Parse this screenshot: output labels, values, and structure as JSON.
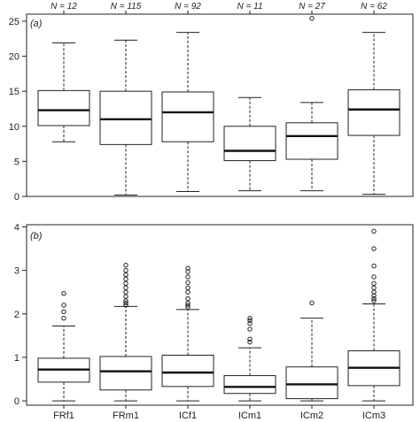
{
  "chart_data": [
    {
      "type": "box",
      "panel_label": "(a)",
      "categories": [
        "FRf1",
        "FRm1",
        "ICf1",
        "ICm1",
        "ICm2",
        "ICm3"
      ],
      "n_labels": [
        "N = 12",
        "N = 115",
        "N = 92",
        "N = 11",
        "N = 27",
        "N = 62"
      ],
      "ylim": [
        0,
        26
      ],
      "yticks": [
        0,
        5,
        10,
        15,
        20,
        25
      ],
      "boxes": [
        {
          "whisker_low": 7.8,
          "q1": 10.1,
          "median": 12.3,
          "q3": 15.1,
          "whisker_high": 21.9,
          "outliers": []
        },
        {
          "whisker_low": 0.2,
          "q1": 7.4,
          "median": 11.0,
          "q3": 15.0,
          "whisker_high": 22.3,
          "outliers": []
        },
        {
          "whisker_low": 0.7,
          "q1": 7.8,
          "median": 12.0,
          "q3": 14.9,
          "whisker_high": 23.4,
          "outliers": []
        },
        {
          "whisker_low": 0.8,
          "q1": 5.1,
          "median": 6.5,
          "q3": 10.0,
          "whisker_high": 14.1,
          "outliers": []
        },
        {
          "whisker_low": 0.8,
          "q1": 5.3,
          "median": 8.6,
          "q3": 10.5,
          "whisker_high": 13.4,
          "outliers": [
            25.4
          ]
        },
        {
          "whisker_low": 0.3,
          "q1": 8.7,
          "median": 12.4,
          "q3": 15.2,
          "whisker_high": 23.4,
          "outliers": []
        }
      ]
    },
    {
      "type": "box",
      "panel_label": "(b)",
      "categories": [
        "FRf1",
        "FRm1",
        "ICf1",
        "ICm1",
        "ICm2",
        "ICm3"
      ],
      "ylim": [
        -0.1,
        4.05
      ],
      "yticks": [
        0,
        1,
        2,
        3,
        4
      ],
      "boxes": [
        {
          "whisker_low": 0.0,
          "q1": 0.43,
          "median": 0.72,
          "q3": 0.98,
          "whisker_high": 1.72,
          "outliers": [
            1.9,
            2.05,
            2.2,
            2.47
          ]
        },
        {
          "whisker_low": 0.0,
          "q1": 0.25,
          "median": 0.68,
          "q3": 1.02,
          "whisker_high": 2.17,
          "outliers": [
            2.2,
            2.25,
            2.3,
            2.4,
            2.5,
            2.6,
            2.7,
            2.8,
            2.9,
            3.0,
            3.12
          ]
        },
        {
          "whisker_low": 0.0,
          "q1": 0.33,
          "median": 0.65,
          "q3": 1.05,
          "whisker_high": 2.1,
          "outliers": [
            2.15,
            2.2,
            2.25,
            2.35,
            2.5,
            2.6,
            2.72,
            2.85,
            2.97,
            3.05
          ]
        },
        {
          "whisker_low": 0.0,
          "q1": 0.17,
          "median": 0.32,
          "q3": 0.58,
          "whisker_high": 1.22,
          "outliers": [
            1.35,
            1.42,
            1.65,
            1.78,
            1.85,
            1.9
          ]
        },
        {
          "whisker_low": 0.0,
          "q1": 0.05,
          "median": 0.38,
          "q3": 0.78,
          "whisker_high": 1.9,
          "outliers": [
            2.25
          ]
        },
        {
          "whisker_low": 0.0,
          "q1": 0.35,
          "median": 0.76,
          "q3": 1.15,
          "whisker_high": 2.23,
          "outliers": [
            2.3,
            2.35,
            2.42,
            2.5,
            2.6,
            2.7,
            2.85,
            3.1,
            3.5,
            3.9
          ]
        }
      ]
    }
  ]
}
